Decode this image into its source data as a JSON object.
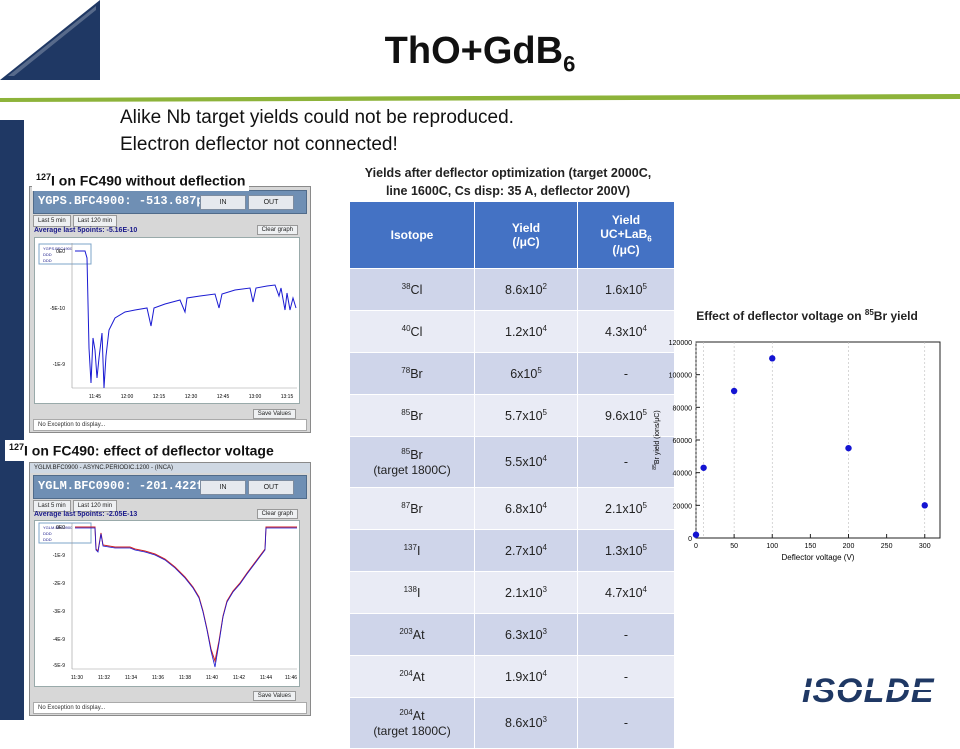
{
  "page": {
    "title": "ThO+GdB",
    "title_sub": "6",
    "subtitle_line1": "Alike Nb target yields could not be reproduced.",
    "subtitle_line2": "Electron deflector not connected!"
  },
  "colors": {
    "navy": "#1f3864",
    "green": "#8db33a",
    "table_header": "#4472c4",
    "row_a": "#cfd5ea",
    "row_b": "#e9ebf5",
    "point": "#1414d2"
  },
  "panel_top": {
    "label_sup": "127",
    "label_text": "I on FC490 without deflection",
    "header_text": "YGPS.BFC4900:  -513.687pA",
    "btn_in": "IN",
    "btn_out": "OUT",
    "tab1": "Last 5 min",
    "tab2": "Last 120 min",
    "avg_text": "Average last 5points: -5.16E-10",
    "clear_label": "Clear graph",
    "legend_lines": [
      "YGPS.BFC4900",
      "DDD",
      "DDD"
    ],
    "y_ticks": [
      "0E0",
      "-5E-10",
      "-1E-9"
    ],
    "x_ticks": [
      "11:45",
      "12:00",
      "12:15",
      "12:30",
      "12:45",
      "13:00",
      "13:15"
    ],
    "save_label": "Save Values",
    "status_text": "No Exception to display..."
  },
  "panel_bottom": {
    "label_sup": "127",
    "label_text": "I on FC490: effect of deflector voltage",
    "window_title": "YGLM.BFC0900 - ASYNC.PERIODIC.1200 - (INCA)",
    "header_text": "YGLM.BFC0900:  -201.422fA",
    "btn_in": "IN",
    "btn_out": "OUT",
    "tab1": "Last 5 min",
    "tab2": "Last 120 min",
    "avg_text": "Average last 5points: -2.05E-13",
    "clear_label": "Clear graph",
    "legend_lines": [
      "YGLM.BFC0900",
      "DDD",
      "DDD"
    ],
    "y_ticks": [
      "0E0",
      "-1E-9",
      "-2E-9",
      "-3E-9",
      "-4E-9",
      "-5E-9"
    ],
    "x_ticks": [
      "11:30",
      "11:32",
      "11:34",
      "11:36",
      "11:38",
      "11:40",
      "11:42",
      "11:44",
      "11:46"
    ],
    "save_label": "Save Values",
    "status_text": "No Exception to display..."
  },
  "table": {
    "caption_line1": "Yields after deflector optimization (target 2000C,",
    "caption_line2": "line 1600C, Cs disp: 35 A, deflector 200V)",
    "headers": {
      "isotope": "Isotope",
      "yield_line1": "Yield",
      "yield_line2": "(/μC)",
      "yield2_line1": "Yield",
      "yield2_line2a": "UC+LaB",
      "yield2_line2_sub": "6",
      "yield2_line3": "(/μC)"
    },
    "rows": [
      {
        "mass": "38",
        "el": "Cl",
        "note": "",
        "y_m": "8.6x10",
        "y_e": "2",
        "u_m": "1.6x10",
        "u_e": "5"
      },
      {
        "mass": "40",
        "el": "Cl",
        "note": "",
        "y_m": "1.2x10",
        "y_e": "4",
        "u_m": "4.3x10",
        "u_e": "4"
      },
      {
        "mass": "78",
        "el": "Br",
        "note": "",
        "y_m": "6x10",
        "y_e": "5",
        "u_m": "-",
        "u_e": ""
      },
      {
        "mass": "85",
        "el": "Br",
        "note": "",
        "y_m": "5.7x10",
        "y_e": "5",
        "u_m": "9.6x10",
        "u_e": "5"
      },
      {
        "mass": "85",
        "el": "Br",
        "note": "(target 1800C)",
        "y_m": "5.5x10",
        "y_e": "4",
        "u_m": "-",
        "u_e": ""
      },
      {
        "mass": "87",
        "el": "Br",
        "note": "",
        "y_m": "6.8x10",
        "y_e": "4",
        "u_m": "2.1x10",
        "u_e": "5"
      },
      {
        "mass": "137",
        "el": "I",
        "note": "",
        "y_m": "2.7x10",
        "y_e": "4",
        "u_m": "1.3x10",
        "u_e": "5"
      },
      {
        "mass": "138",
        "el": "I",
        "note": "",
        "y_m": "2.1x10",
        "y_e": "3",
        "u_m": "4.7x10",
        "u_e": "4"
      },
      {
        "mass": "203",
        "el": "At",
        "note": "",
        "y_m": "6.3x10",
        "y_e": "3",
        "u_m": "-",
        "u_e": ""
      },
      {
        "mass": "204",
        "el": "At",
        "note": "",
        "y_m": "1.9x10",
        "y_e": "4",
        "u_m": "-",
        "u_e": ""
      },
      {
        "mass": "204",
        "el": "At",
        "note": "(target 1800C)",
        "y_m": "8.6x10",
        "y_e": "3",
        "u_m": "-",
        "u_e": ""
      }
    ]
  },
  "chart_caption": {
    "pre": "Effect of deflector voltage on ",
    "sup": "85",
    "post": "Br yield"
  },
  "chart_data": {
    "type": "scatter",
    "title": "",
    "xlabel": "Deflector voltage (V)",
    "ylabel_sup": "85",
    "ylabel": "Br yield (ions/μC)",
    "x": [
      0,
      10,
      50,
      100,
      200,
      300
    ],
    "y": [
      2000,
      43000,
      90000,
      110000,
      55000,
      20000
    ],
    "xlim": [
      0,
      320
    ],
    "ylim": [
      0,
      120000
    ],
    "x_ticks": [
      0,
      50,
      100,
      150,
      200,
      250,
      300
    ],
    "y_ticks": [
      0,
      20000,
      40000,
      60000,
      80000,
      100000,
      120000
    ],
    "vertical_dashed_at": [
      0,
      10,
      50,
      100,
      200,
      300
    ],
    "grid": false
  },
  "logo": {
    "text": "ISOLDE"
  }
}
